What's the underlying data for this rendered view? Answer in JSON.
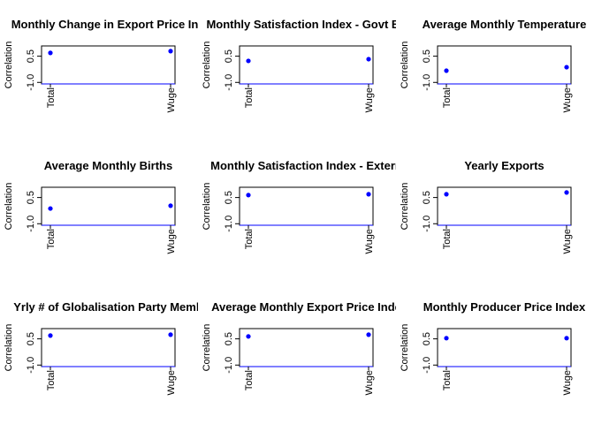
{
  "chart_data": [
    {
      "type": "dot",
      "title": "Monthly Change in Export Price Ind",
      "y_label": "Correlation",
      "categories": [
        "Total",
        "Wuge"
      ],
      "values": [
        0.69,
        0.79
      ],
      "color": "#0000ff",
      "ylim": [
        -1,
        1
      ],
      "yticks": [
        {
          "value": -1,
          "label": "-1.0"
        },
        {
          "value": 0.5,
          "label": "0.5"
        }
      ]
    },
    {
      "type": "dot",
      "title": "Monthly Satisfaction Index - Govt Ba",
      "y_label": "Correlation",
      "categories": [
        "Total",
        "Wuge"
      ],
      "values": [
        0.23,
        0.33
      ],
      "color": "#0000ff",
      "ylim": [
        -1,
        1
      ],
      "yticks": [
        {
          "value": -1,
          "label": "-1.0"
        },
        {
          "value": 0.5,
          "label": "0.5"
        }
      ]
    },
    {
      "type": "dot",
      "title": "Average Monthly Temperature",
      "y_label": "Correlation",
      "categories": [
        "Total",
        "Wuge"
      ],
      "values": [
        -0.33,
        -0.13
      ],
      "color": "#0000ff",
      "ylim": [
        -1,
        1
      ],
      "yticks": [
        {
          "value": -1,
          "label": "-1.0"
        },
        {
          "value": 0.5,
          "label": "0.5"
        }
      ]
    },
    {
      "type": "dot",
      "title": "Average Monthly Births",
      "y_label": "Correlation",
      "categories": [
        "Total",
        "Wuge"
      ],
      "values": [
        -0.13,
        0.03
      ],
      "color": "#0000ff",
      "ylim": [
        -1,
        1
      ],
      "yticks": [
        {
          "value": -1,
          "label": "-1.0"
        },
        {
          "value": 0.5,
          "label": "0.5"
        }
      ]
    },
    {
      "type": "dot",
      "title": "Monthly Satisfaction Index - Extern",
      "y_label": "Correlation",
      "categories": [
        "Total",
        "Wuge"
      ],
      "values": [
        0.64,
        0.69
      ],
      "color": "#0000ff",
      "ylim": [
        -1,
        1
      ],
      "yticks": [
        {
          "value": -1,
          "label": "-1.0"
        },
        {
          "value": 0.5,
          "label": "0.5"
        }
      ]
    },
    {
      "type": "dot",
      "title": "Yearly Exports",
      "y_label": "Correlation",
      "categories": [
        "Total",
        "Wuge"
      ],
      "values": [
        0.69,
        0.79
      ],
      "color": "#0000ff",
      "ylim": [
        -1,
        1
      ],
      "yticks": [
        {
          "value": -1,
          "label": "-1.0"
        },
        {
          "value": 0.5,
          "label": "0.5"
        }
      ]
    },
    {
      "type": "dot",
      "title": "Yrly # of Globalisation Party Memb",
      "y_label": "Correlation",
      "categories": [
        "Total",
        "Wuge"
      ],
      "values": [
        0.69,
        0.74
      ],
      "color": "#0000ff",
      "ylim": [
        -1,
        1
      ],
      "yticks": [
        {
          "value": -1,
          "label": "-1.0"
        },
        {
          "value": 0.5,
          "label": "0.5"
        }
      ]
    },
    {
      "type": "dot",
      "title": "Average Monthly Export Price Inde",
      "y_label": "Correlation",
      "categories": [
        "Total",
        "Wuge"
      ],
      "values": [
        0.64,
        0.74
      ],
      "color": "#0000ff",
      "ylim": [
        -1,
        1
      ],
      "yticks": [
        {
          "value": -1,
          "label": "-1.0"
        },
        {
          "value": 0.5,
          "label": "0.5"
        }
      ]
    },
    {
      "type": "dot",
      "title": "Monthly Producer Price Index",
      "y_label": "Correlation",
      "categories": [
        "Total",
        "Wuge"
      ],
      "values": [
        0.54,
        0.54
      ],
      "color": "#0000ff",
      "ylim": [
        -1,
        1
      ],
      "yticks": [
        {
          "value": -1,
          "label": "-1.0"
        },
        {
          "value": 0.5,
          "label": "0.5"
        }
      ]
    }
  ]
}
